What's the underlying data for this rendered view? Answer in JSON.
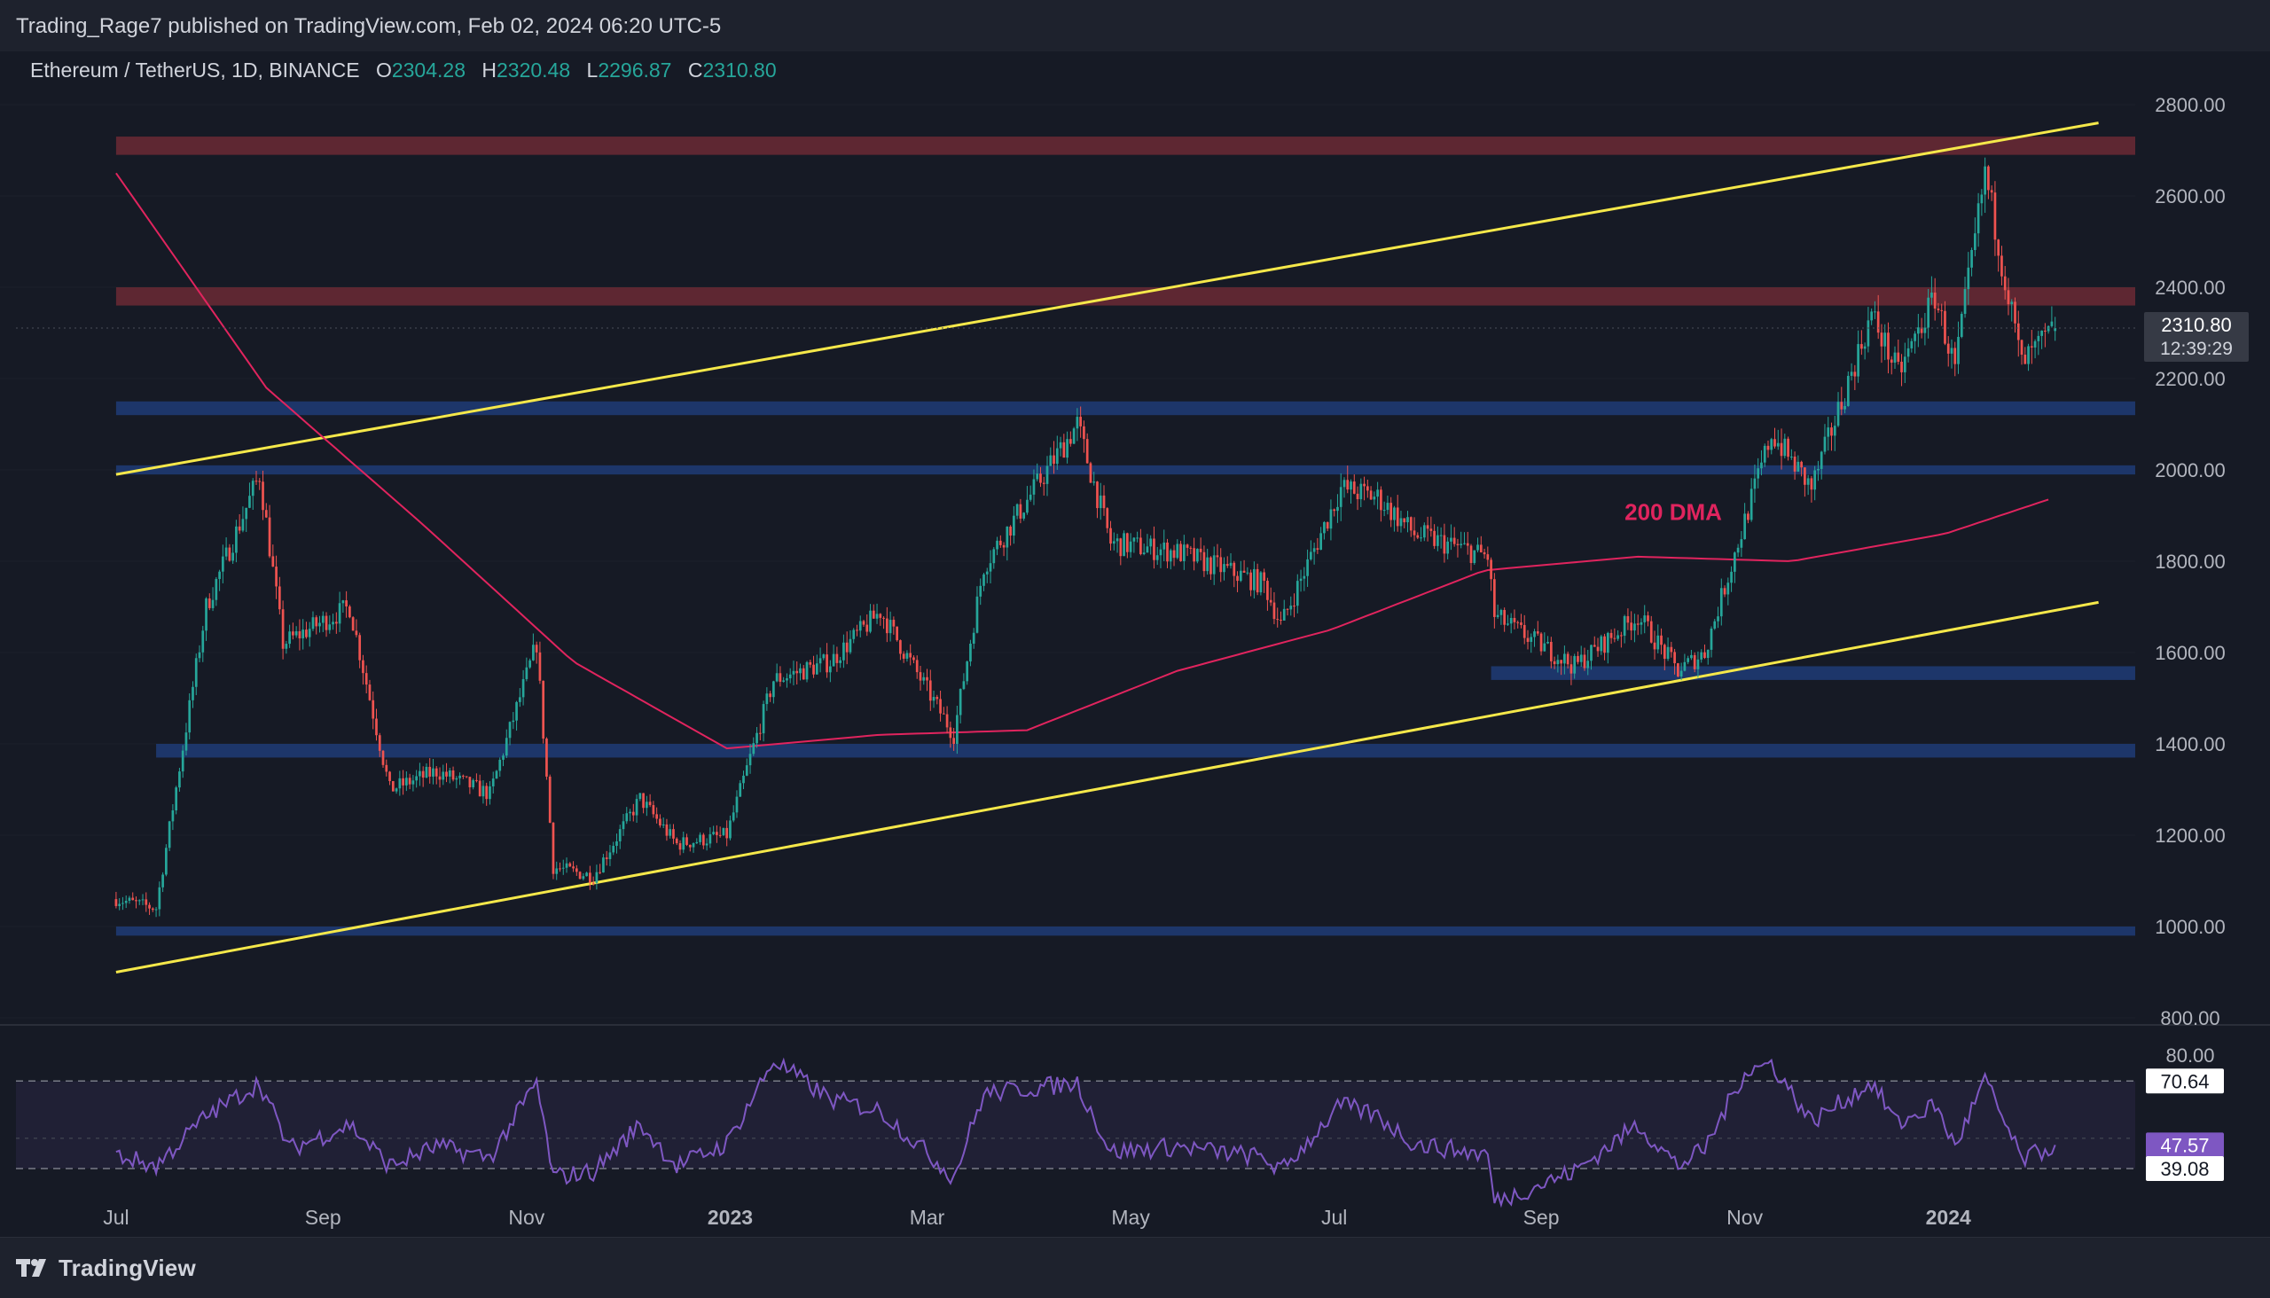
{
  "header": {
    "publisher": "Trading_Rage7 published on TradingView.com, Feb 02, 2024 06:20 UTC-5"
  },
  "legend": {
    "symbol": "Ethereum / TetherUS, 1D, BINANCE",
    "o_label": "O",
    "o_value": "2304.28",
    "h_label": "H",
    "h_value": "2320.48",
    "l_label": "L",
    "l_value": "2296.87",
    "c_label": "C",
    "c_value": "2310.80"
  },
  "footer": {
    "brand": "TradingView"
  },
  "colors": {
    "background": "#161a25",
    "chrome": "#1e222d",
    "up": "#26a69a",
    "down": "#ef5350",
    "trendline": "#f5e84a",
    "dma": "#e0245e",
    "resistance_zone": "#6b2a35",
    "support_zone": "#1e3a72",
    "rsi": "#7e57c2"
  },
  "chart_data": [
    {
      "type": "candlestick",
      "symbol": "ETH/USDT",
      "timeframe": "1D",
      "x_ticks": [
        "Jul",
        "Sep",
        "Nov",
        "2023",
        "Mar",
        "May",
        "Jul",
        "Sep",
        "Nov",
        "2024"
      ],
      "y_ticks": [
        "2800.00",
        "2600.00",
        "2400.00",
        "2200.00",
        "2000.00",
        "1800.00",
        "1600.00",
        "1400.00",
        "1200.00",
        "1000.00",
        "800.00"
      ],
      "ylim": [
        800,
        2800
      ],
      "last_price": "2310.80",
      "countdown": "12:39:29",
      "annotations": [
        {
          "text": "200 DMA",
          "date": "2023-09-26",
          "price": 1890
        }
      ],
      "price_path": [
        [
          "2022-07-01",
          1060
        ],
        [
          "2022-07-13",
          1040
        ],
        [
          "2022-07-28",
          1700
        ],
        [
          "2022-08-13",
          1990
        ],
        [
          "2022-08-20",
          1620
        ],
        [
          "2022-09-09",
          1700
        ],
        [
          "2022-09-21",
          1300
        ],
        [
          "2022-10-05",
          1340
        ],
        [
          "2022-10-21",
          1290
        ],
        [
          "2022-11-04",
          1620
        ],
        [
          "2022-11-09",
          1130
        ],
        [
          "2022-11-21",
          1110
        ],
        [
          "2022-12-05",
          1280
        ],
        [
          "2022-12-16",
          1180
        ],
        [
          "2022-12-31",
          1200
        ],
        [
          "2023-01-14",
          1540
        ],
        [
          "2023-01-31",
          1580
        ],
        [
          "2023-02-15",
          1690
        ],
        [
          "2023-03-09",
          1420
        ],
        [
          "2023-03-18",
          1790
        ],
        [
          "2023-04-15",
          2100
        ],
        [
          "2023-04-25",
          1840
        ],
        [
          "2023-05-15",
          1820
        ],
        [
          "2023-06-10",
          1750
        ],
        [
          "2023-06-15",
          1660
        ],
        [
          "2023-07-03",
          1960
        ],
        [
          "2023-07-14",
          1940
        ],
        [
          "2023-07-25",
          1860
        ],
        [
          "2023-08-16",
          1810
        ],
        [
          "2023-08-18",
          1680
        ],
        [
          "2023-09-11",
          1570
        ],
        [
          "2023-09-30",
          1680
        ],
        [
          "2023-10-12",
          1560
        ],
        [
          "2023-10-20",
          1600
        ],
        [
          "2023-11-09",
          2080
        ],
        [
          "2023-11-21",
          1960
        ],
        [
          "2023-12-09",
          2340
        ],
        [
          "2023-12-17",
          2210
        ],
        [
          "2023-12-28",
          2380
        ],
        [
          "2024-01-03",
          2220
        ],
        [
          "2024-01-12",
          2650
        ],
        [
          "2024-01-23",
          2230
        ],
        [
          "2024-02-02",
          2310
        ]
      ],
      "ma200_path": [
        [
          "2022-07-01",
          2650
        ],
        [
          "2022-08-15",
          2180
        ],
        [
          "2022-10-01",
          1880
        ],
        [
          "2022-11-15",
          1580
        ],
        [
          "2022-12-31",
          1390
        ],
        [
          "2023-02-15",
          1420
        ],
        [
          "2023-03-31",
          1430
        ],
        [
          "2023-05-15",
          1560
        ],
        [
          "2023-06-30",
          1650
        ],
        [
          "2023-08-15",
          1780
        ],
        [
          "2023-09-30",
          1810
        ],
        [
          "2023-11-15",
          1800
        ],
        [
          "2023-12-31",
          1860
        ],
        [
          "2024-02-02",
          1940
        ]
      ],
      "trendlines": [
        {
          "from": [
            "2022-07-01",
            1990
          ],
          "to": [
            "2024-02-15",
            2760
          ]
        },
        {
          "from": [
            "2022-07-01",
            900
          ],
          "to": [
            "2024-02-15",
            1710
          ]
        }
      ],
      "zones": [
        {
          "kind": "resistance",
          "from": "2022-07-01",
          "low": 2690,
          "high": 2730
        },
        {
          "kind": "resistance",
          "from": "2022-07-01",
          "low": 2360,
          "high": 2400
        },
        {
          "kind": "support",
          "from": "2022-07-01",
          "low": 2120,
          "high": 2150
        },
        {
          "kind": "support",
          "from": "2022-07-01",
          "low": 1990,
          "high": 2010
        },
        {
          "kind": "support",
          "from": "2023-08-17",
          "low": 1540,
          "high": 1570
        },
        {
          "kind": "support",
          "from": "2022-07-13",
          "low": 1370,
          "high": 1400
        },
        {
          "kind": "support",
          "from": "2022-07-01",
          "low": 980,
          "high": 1000
        }
      ]
    },
    {
      "type": "line",
      "name": "RSI",
      "ylim": [
        25,
        80
      ],
      "y_ticks": [
        "80.00"
      ],
      "band": [
        39.08,
        70.64
      ],
      "upper_label": "70.64",
      "value_label": "47.57",
      "lower_label": "39.08",
      "rsi_path": [
        [
          "2022-07-01",
          44
        ],
        [
          "2022-07-13",
          40
        ],
        [
          "2022-07-28",
          58
        ],
        [
          "2022-08-13",
          70
        ],
        [
          "2022-08-22",
          46
        ],
        [
          "2022-09-09",
          55
        ],
        [
          "2022-09-21",
          40
        ],
        [
          "2022-10-05",
          47
        ],
        [
          "2022-10-21",
          43
        ],
        [
          "2022-11-04",
          70
        ],
        [
          "2022-11-09",
          36
        ],
        [
          "2022-11-21",
          38
        ],
        [
          "2022-12-05",
          55
        ],
        [
          "2022-12-16",
          40
        ],
        [
          "2022-12-31",
          48
        ],
        [
          "2023-01-14",
          78
        ],
        [
          "2023-01-31",
          64
        ],
        [
          "2023-02-15",
          60
        ],
        [
          "2023-03-09",
          36
        ],
        [
          "2023-03-18",
          66
        ],
        [
          "2023-04-15",
          70
        ],
        [
          "2023-04-25",
          45
        ],
        [
          "2023-05-15",
          47
        ],
        [
          "2023-06-10",
          43
        ],
        [
          "2023-06-15",
          38
        ],
        [
          "2023-07-03",
          62
        ],
        [
          "2023-07-14",
          58
        ],
        [
          "2023-07-25",
          48
        ],
        [
          "2023-08-16",
          44
        ],
        [
          "2023-08-18",
          27
        ],
        [
          "2023-09-11",
          38
        ],
        [
          "2023-09-30",
          55
        ],
        [
          "2023-10-12",
          40
        ],
        [
          "2023-10-20",
          46
        ],
        [
          "2023-11-01",
          74
        ],
        [
          "2023-11-09",
          77
        ],
        [
          "2023-11-21",
          56
        ],
        [
          "2023-12-09",
          70
        ],
        [
          "2023-12-17",
          55
        ],
        [
          "2023-12-28",
          62
        ],
        [
          "2024-01-03",
          47
        ],
        [
          "2024-01-12",
          71
        ],
        [
          "2024-01-23",
          42
        ],
        [
          "2024-02-02",
          47.57
        ]
      ]
    }
  ]
}
